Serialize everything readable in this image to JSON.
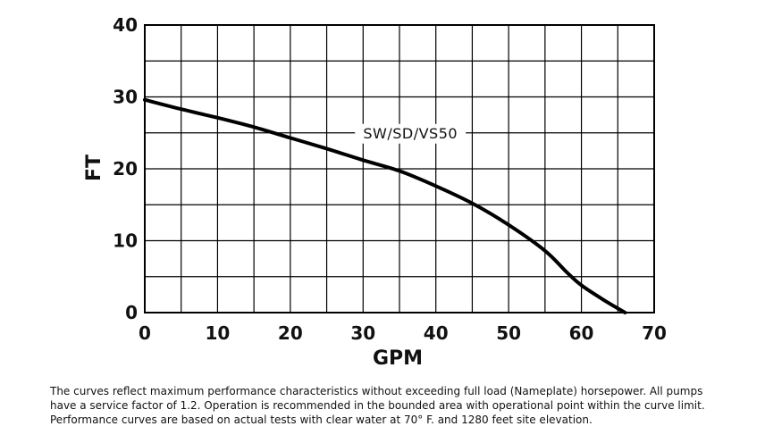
{
  "chart_data": {
    "type": "line",
    "xlabel": "GPM",
    "ylabel": "FT",
    "xlim": [
      0,
      70
    ],
    "ylim": [
      0,
      40
    ],
    "xticks": [
      0,
      10,
      20,
      30,
      40,
      50,
      60,
      70
    ],
    "yticks": [
      0,
      10,
      20,
      30,
      40
    ],
    "grid": true,
    "grid_x_step": 5,
    "grid_y_step": 5,
    "series": [
      {
        "name": "SW/SD/VS50",
        "color": "#000000",
        "x": [
          0,
          5,
          10,
          15,
          20,
          25,
          30,
          35,
          40,
          45,
          50,
          55,
          58,
          60,
          63,
          66
        ],
        "y": [
          29.6,
          28.3,
          27.1,
          25.8,
          24.3,
          22.8,
          21.2,
          19.7,
          17.6,
          15.2,
          12.2,
          8.6,
          5.6,
          3.8,
          1.8,
          0
        ]
      }
    ]
  },
  "footnote": {
    "line1": "The curves reflect maximum performance characteristics without exceeding full load (Nameplate) horsepower. All pumps",
    "line2": "have a service factor of 1.2. Operation is recommended in the bounded area with operational point within the curve limit.",
    "line3": "Performance curves are based on actual tests with clear water at 70° F. and 1280 feet site elevation."
  }
}
